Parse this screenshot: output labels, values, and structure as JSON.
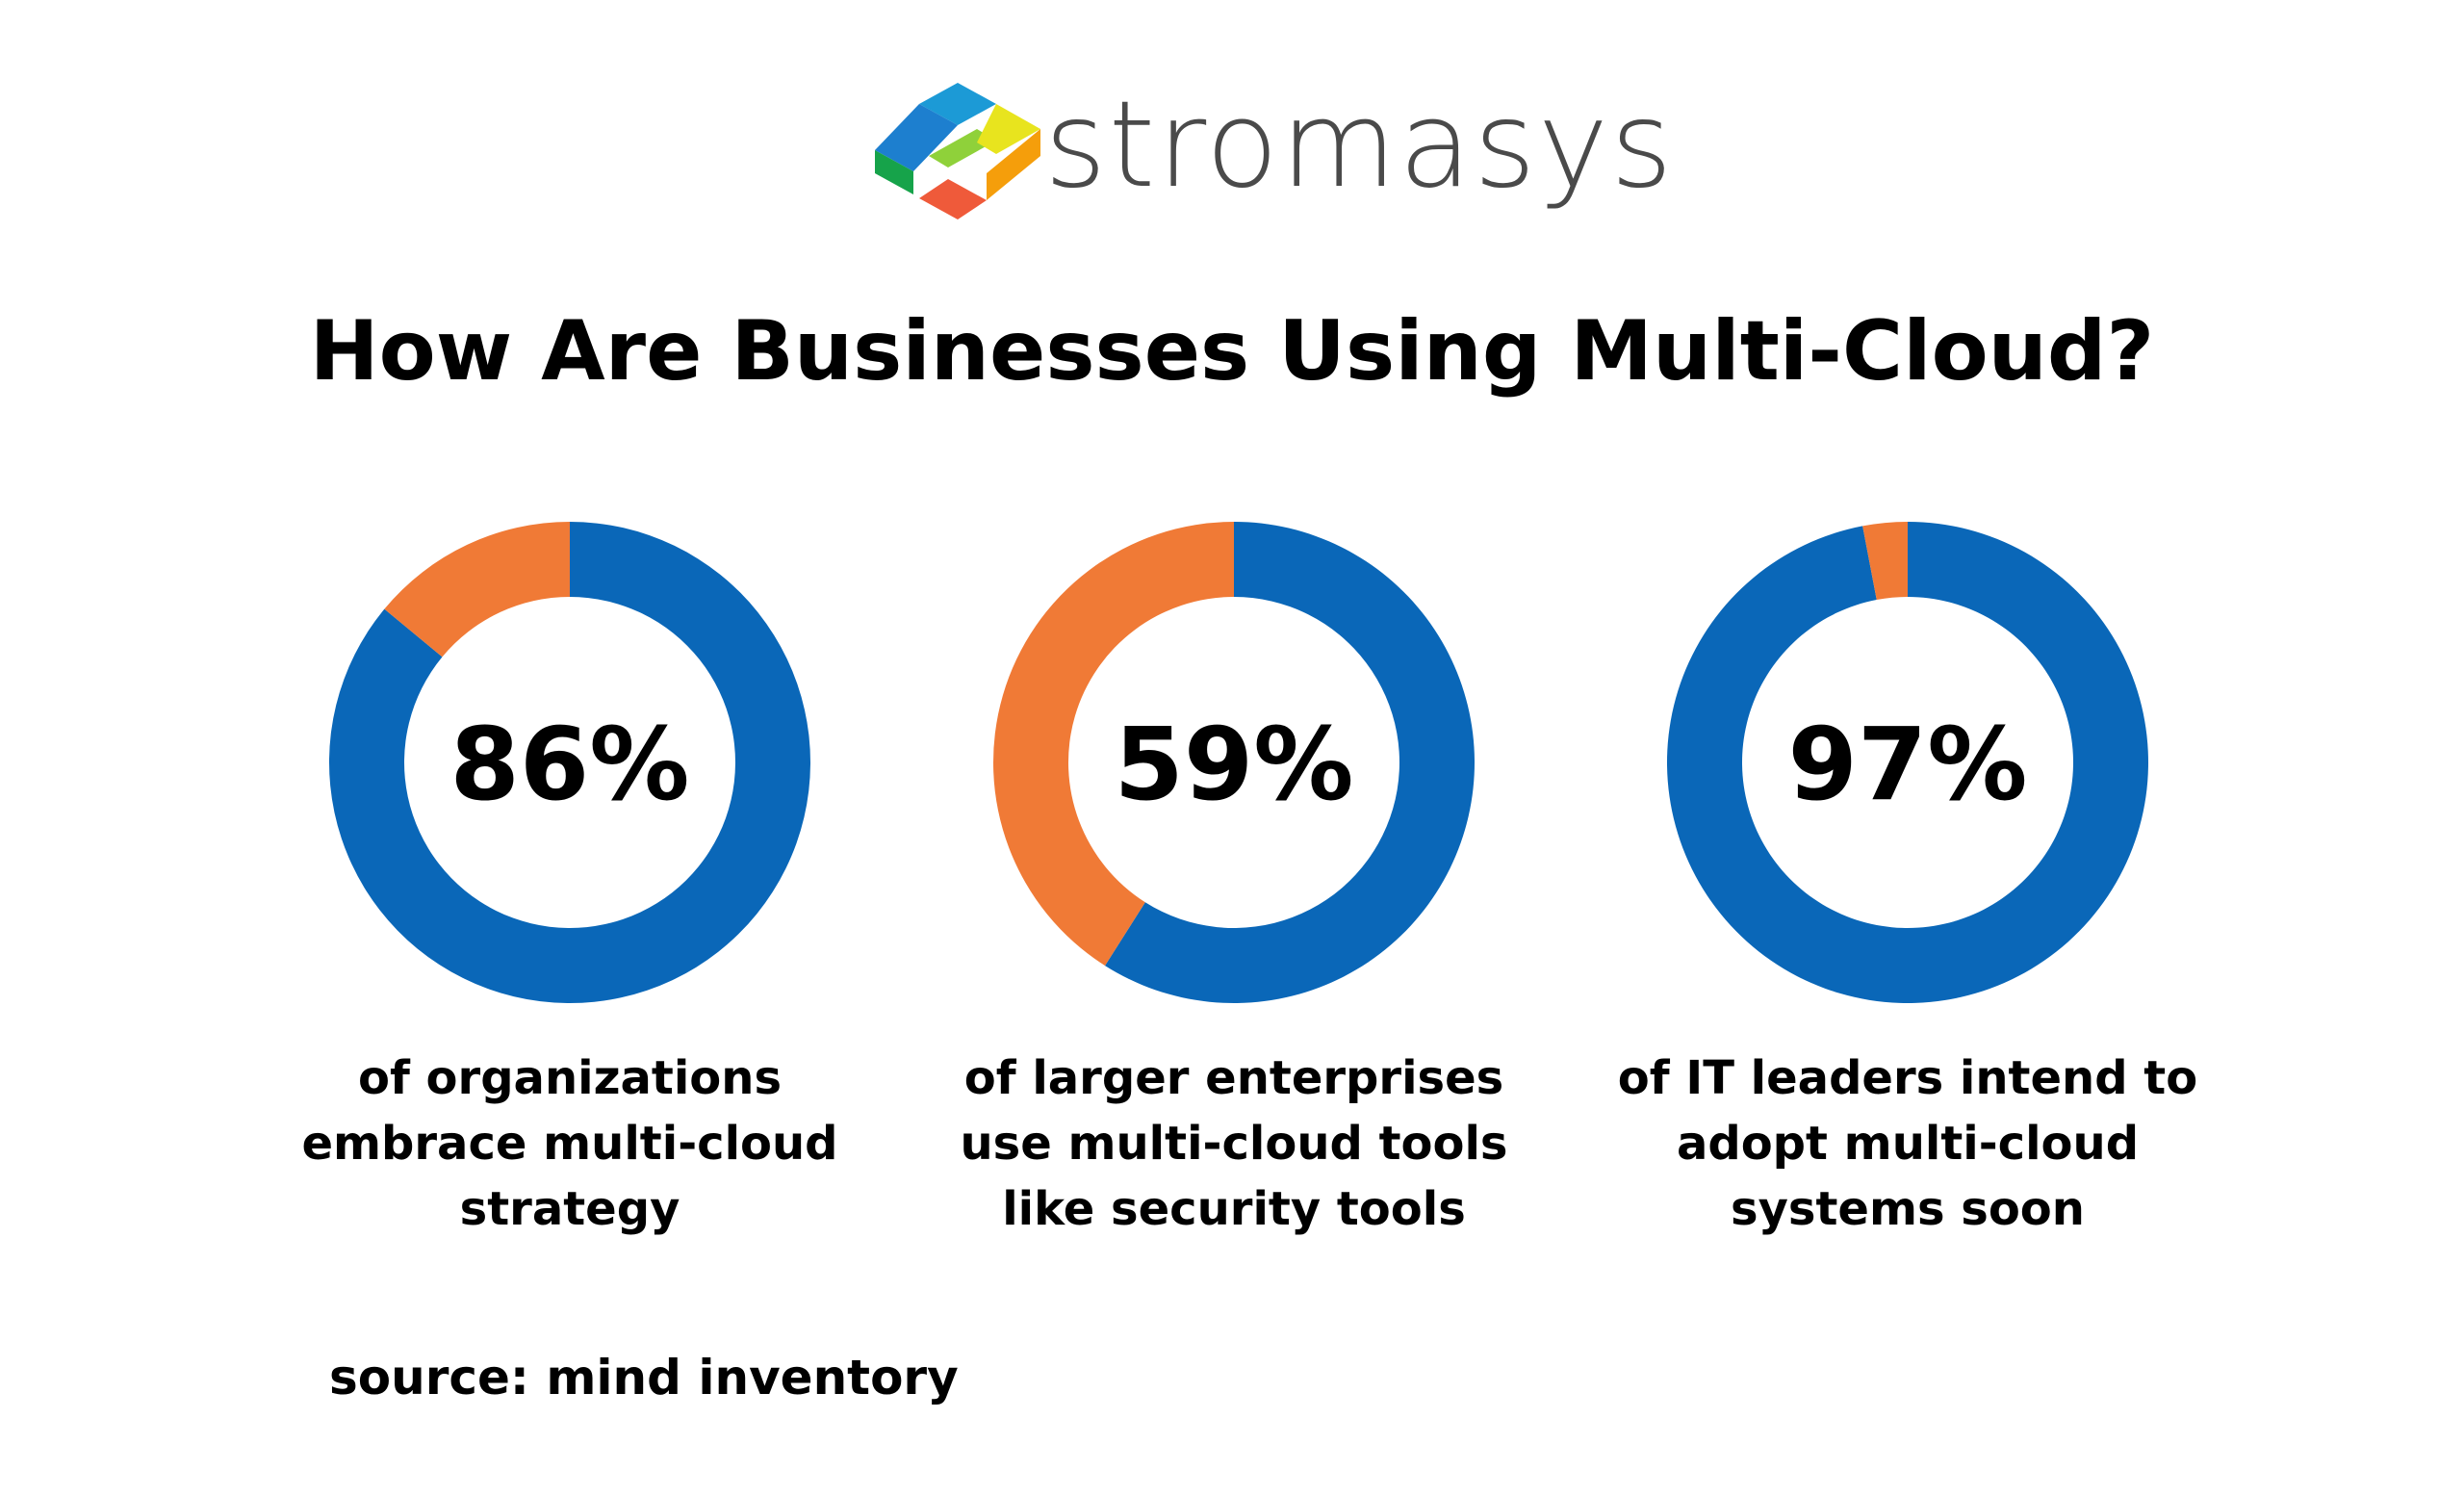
{
  "logo": {
    "text": "stromasys",
    "colors": [
      "#1c9ad6",
      "#16a34a",
      "#e8e41e",
      "#f59e0b",
      "#ef4444",
      "#1d4ed8"
    ]
  },
  "title": "How Are Businesses Using Multi-Cloud?",
  "colors": {
    "primary": "#0a67b8",
    "secondary": "#f07a36"
  },
  "chart_data": [
    {
      "type": "pie",
      "values": [
        86,
        14
      ],
      "label": "86%",
      "caption": [
        "of organizations",
        "embrace multi-cloud",
        "strategy"
      ]
    },
    {
      "type": "pie",
      "values": [
        59,
        41
      ],
      "label": "59%",
      "caption": [
        "of larger enterprises",
        "use multi-cloud tools",
        "like security tools"
      ]
    },
    {
      "type": "pie",
      "values": [
        97,
        3
      ],
      "label": "97%",
      "caption": [
        "of IT leaders intend to",
        "adopt multi-cloud",
        "systems soon"
      ]
    }
  ],
  "source": "source: mind inventory"
}
